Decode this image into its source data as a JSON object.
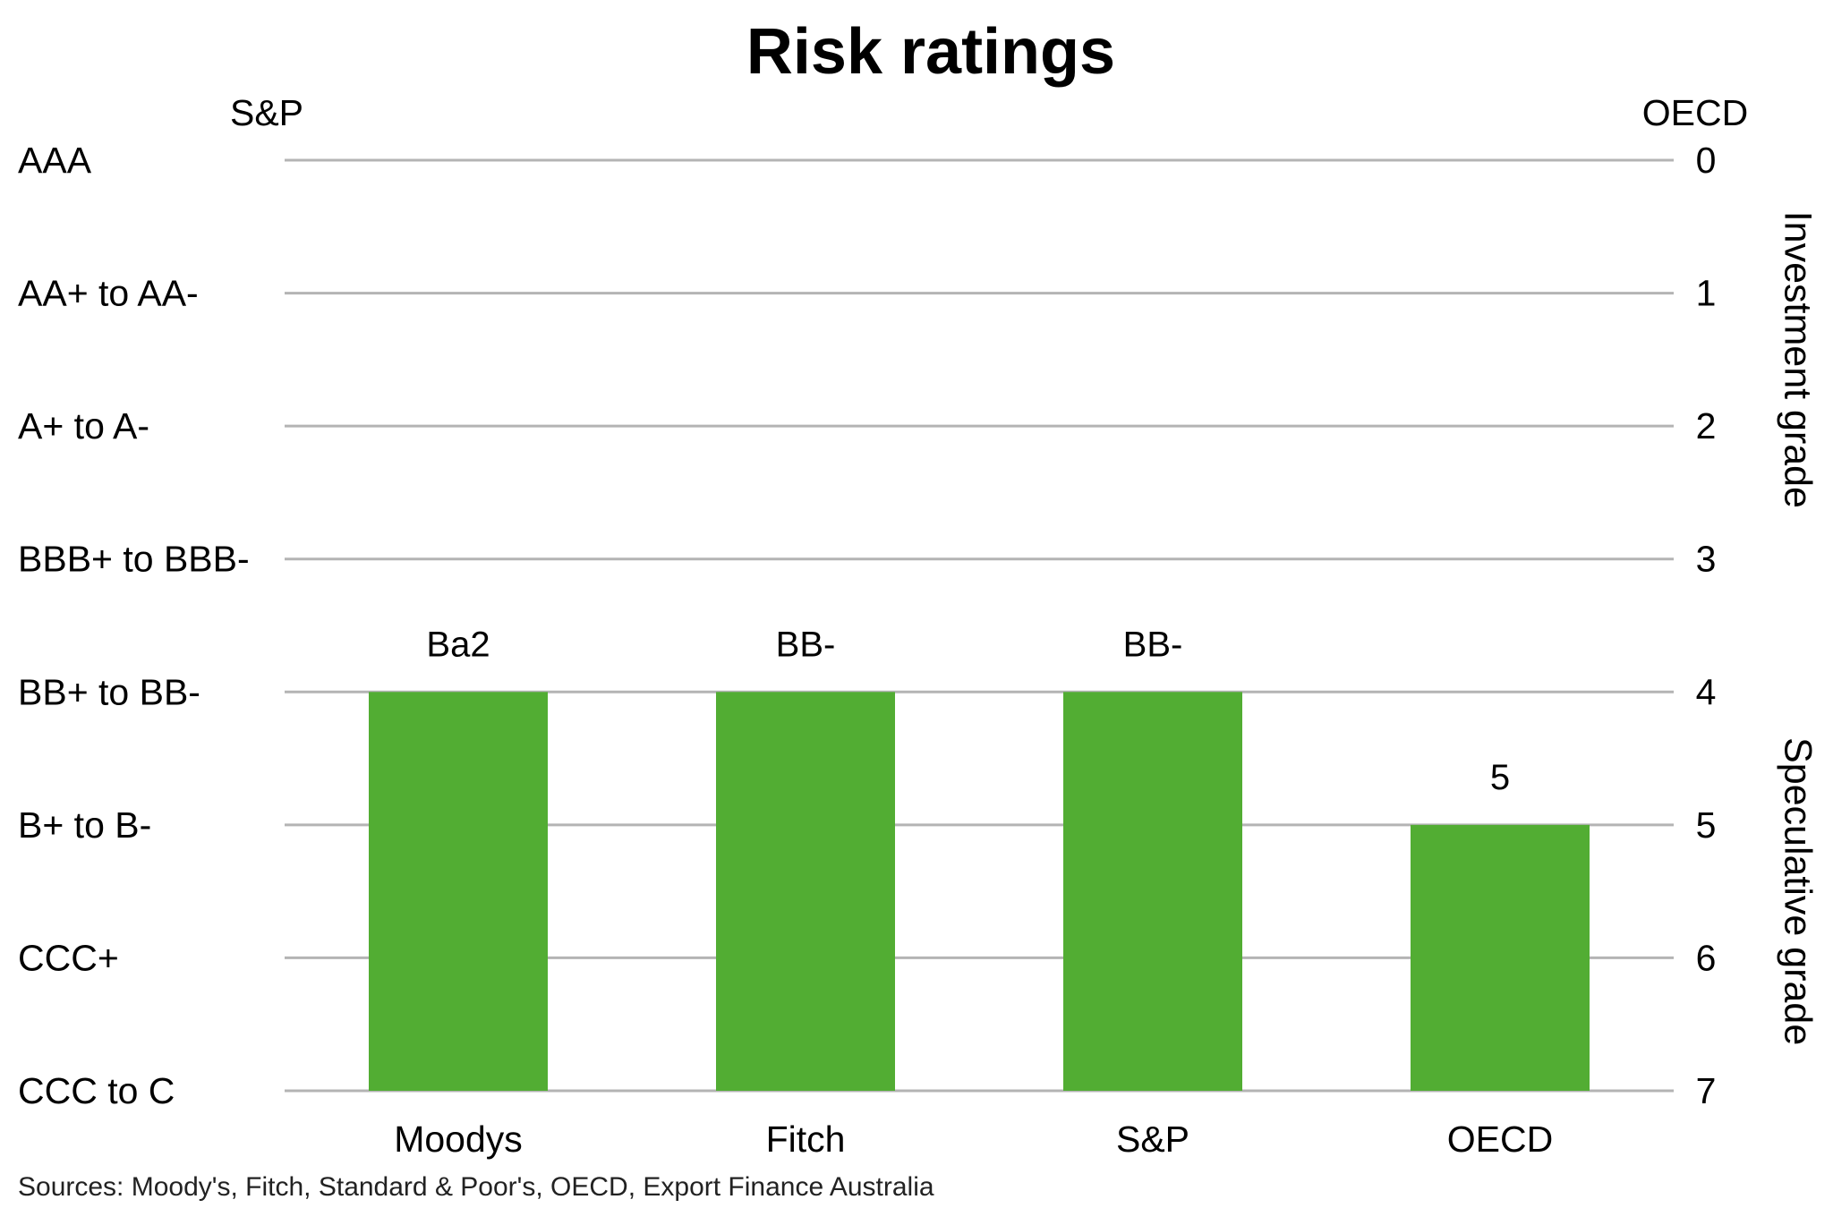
{
  "chart_data": {
    "type": "bar",
    "title": "Risk ratings",
    "left_axis_title": "S&P",
    "right_axis_title": "OECD",
    "categories": [
      "Moodys",
      "Fitch",
      "S&P",
      "OECD"
    ],
    "values": [
      4,
      4,
      4,
      5
    ],
    "value_labels": [
      "Ba2",
      "BB-",
      "BB-",
      "5"
    ],
    "ylim": [
      0,
      7
    ],
    "y_reversed": true,
    "bar_baseline": 7,
    "left_tick_labels": [
      "AAA",
      "AA+ to AA-",
      "A+ to A-",
      "BBB+ to BBB-",
      "BB+ to BB-",
      "B+ to B-",
      "CCC+",
      "CCC to C"
    ],
    "right_tick_labels": [
      "0",
      "1",
      "2",
      "3",
      "4",
      "5",
      "6",
      "7"
    ],
    "bands": [
      {
        "label": "Investment grade",
        "from": 0,
        "to": 3
      },
      {
        "label": "Speculative grade",
        "from": 4,
        "to": 7
      }
    ],
    "bar_color": "#52ad33",
    "grid": true,
    "source": "Sources: Moody's, Fitch, Standard & Poor's, OECD, Export Finance Australia"
  }
}
